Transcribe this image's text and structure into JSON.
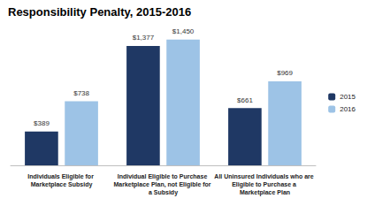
{
  "chart_data": {
    "type": "bar",
    "title": "Responsibility Penalty, 2015-2016",
    "categories": [
      "Individuals Eligible for Marketplace Subsidy",
      "Individual Eligible to Purchase Marketplace Plan, not Eligible for a Subsidy",
      "All Uninsured Individuals who are Eligible to Purchase a Marketplace Plan"
    ],
    "series": [
      {
        "name": "2015",
        "color": "#1f3864",
        "values": [
          389,
          1377,
          661
        ],
        "value_labels": [
          "$389",
          "$1,377",
          "$661"
        ]
      },
      {
        "name": "2016",
        "color": "#9dc3e6",
        "values": [
          738,
          1450,
          969
        ],
        "value_labels": [
          "$738",
          "$1,450",
          "$969"
        ]
      }
    ],
    "ylim": [
      0,
      1600
    ],
    "grid": false,
    "legend": "right",
    "data_labels": true,
    "tick_labels": "x"
  }
}
